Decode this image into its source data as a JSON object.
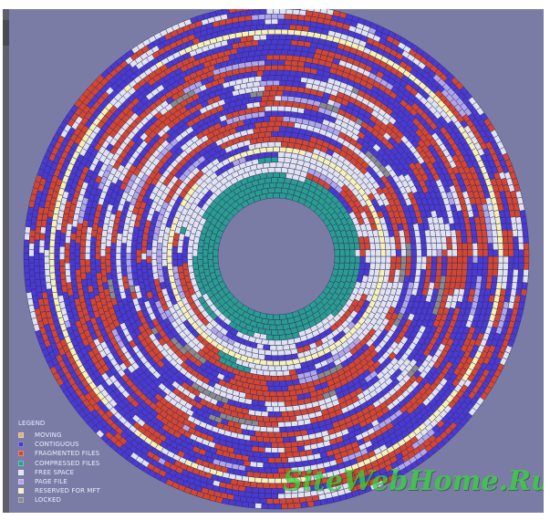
{
  "legend": {
    "title": "LEGEND",
    "items": [
      {
        "label": "MOVING",
        "color": "#e2b07a"
      },
      {
        "label": "CONTIGUOUS",
        "color": "#4a3ad0"
      },
      {
        "label": "FRAGMENTED FILES",
        "color": "#d4462f"
      },
      {
        "label": "COMPRESSED FILES",
        "color": "#2a9d8f"
      },
      {
        "label": "FREE SPACE",
        "color": "#e1e3ee"
      },
      {
        "label": "PAGE FILE",
        "color": "#b0a6e8"
      },
      {
        "label": "RESERVED FOR MFT",
        "color": "#f7f2b4"
      },
      {
        "label": "LOCKED",
        "color": "#8a8a8a"
      }
    ]
  },
  "watermark": {
    "text": "SiteWebHome.Ru",
    "color": "#34d43c"
  },
  "colors": {
    "background": "#7b7ca5",
    "contiguous": "#4a3ad0",
    "fragmented": "#d4462f",
    "free": "#e1e3ee",
    "compressed": "#2a9d8f",
    "mft": "#f7f2b4",
    "page": "#b0a6e8",
    "locked": "#8a8a8a"
  }
}
